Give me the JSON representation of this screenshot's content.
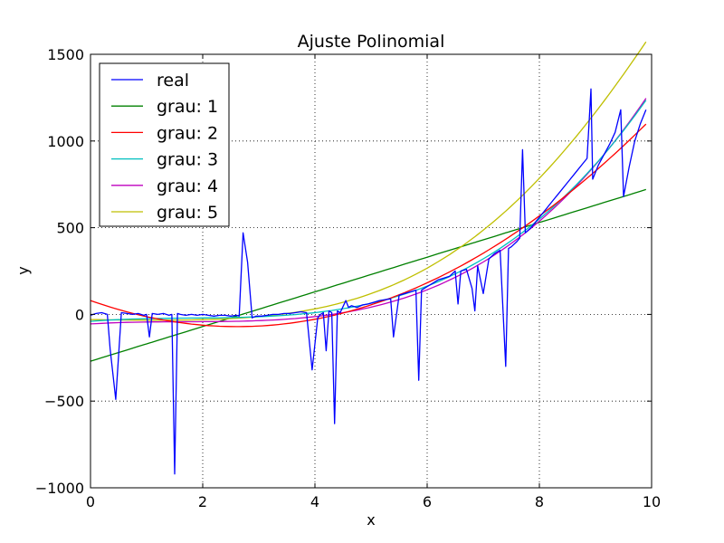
{
  "chart_data": {
    "type": "line",
    "title": "Ajuste Polinomial",
    "xlabel": "x",
    "ylabel": "y",
    "xlim": [
      0,
      10
    ],
    "ylim": [
      -1000,
      1500
    ],
    "xticks": [
      "0",
      "2",
      "4",
      "6",
      "8",
      "10"
    ],
    "yticks": [
      "−1000",
      "−500",
      "0",
      "500",
      "1000",
      "1500"
    ],
    "grid": true,
    "grid_style": "dotted",
    "legend_position": "top-left",
    "series": [
      {
        "name": "real",
        "color": "#0000ff",
        "x": [
          0.0,
          0.1,
          0.2,
          0.3,
          0.35,
          0.45,
          0.55,
          0.65,
          0.75,
          0.85,
          0.95,
          1.0,
          1.05,
          1.1,
          1.2,
          1.3,
          1.4,
          1.45,
          1.5,
          1.55,
          1.6,
          1.7,
          1.8,
          1.9,
          2.0,
          2.1,
          2.2,
          2.3,
          2.4,
          2.5,
          2.6,
          2.65,
          2.72,
          2.8,
          2.88,
          2.95,
          3.05,
          3.15,
          3.25,
          3.35,
          3.45,
          3.55,
          3.65,
          3.75,
          3.85,
          3.95,
          4.05,
          4.1,
          4.15,
          4.2,
          4.25,
          4.3,
          4.35,
          4.4,
          4.45,
          4.55,
          4.6,
          4.65,
          4.75,
          4.85,
          4.95,
          5.05,
          5.15,
          5.25,
          5.35,
          5.4,
          5.5,
          5.6,
          5.7,
          5.8,
          5.85,
          5.9,
          6.0,
          6.1,
          6.2,
          6.3,
          6.4,
          6.5,
          6.55,
          6.6,
          6.7,
          6.8,
          6.85,
          6.9,
          7.0,
          7.1,
          7.2,
          7.3,
          7.4,
          7.45,
          7.5,
          7.6,
          7.65,
          7.7,
          7.75,
          7.85,
          7.95,
          8.05,
          8.15,
          8.25,
          8.35,
          8.45,
          8.55,
          8.65,
          8.75,
          8.85,
          8.92,
          8.95,
          9.05,
          9.15,
          9.25,
          9.35,
          9.45,
          9.5,
          9.6,
          9.7,
          9.8,
          9.9
        ],
        "values": [
          -5,
          5,
          10,
          0,
          -200,
          -490,
          10,
          5,
          0,
          5,
          -5,
          0,
          -130,
          5,
          0,
          5,
          -5,
          0,
          -920,
          5,
          0,
          -5,
          0,
          -5,
          0,
          -5,
          -10,
          -5,
          -5,
          -10,
          -5,
          -10,
          470,
          300,
          -20,
          -10,
          -10,
          -5,
          0,
          0,
          5,
          5,
          10,
          15,
          10,
          -320,
          -20,
          0,
          10,
          -210,
          20,
          10,
          -630,
          20,
          10,
          80,
          40,
          50,
          40,
          55,
          60,
          70,
          80,
          85,
          90,
          -130,
          110,
          120,
          130,
          140,
          -380,
          140,
          160,
          180,
          200,
          210,
          220,
          250,
          60,
          250,
          260,
          150,
          20,
          280,
          120,
          320,
          350,
          370,
          -300,
          380,
          390,
          420,
          440,
          950,
          470,
          500,
          540,
          580,
          620,
          660,
          700,
          740,
          780,
          820,
          860,
          900,
          1300,
          780,
          860,
          920,
          980,
          1050,
          1180,
          680,
          850,
          1000,
          1100,
          1180
        ]
      },
      {
        "name": "grau: 1",
        "color": "#008000",
        "coefficients": [
          -270,
          100
        ]
      },
      {
        "name": "grau: 2",
        "color": "#ff0000",
        "coefficients": [
          80,
          -115,
          22
        ]
      },
      {
        "name": "grau: 3",
        "color": "#00bfbf",
        "coefficients": [
          -40,
          25.6,
          -12.54,
          2.32
        ]
      },
      {
        "name": "grau: 4",
        "color": "#bf00bf",
        "coefficients": [
          -55,
          20,
          -11,
          2.1,
          0.015
        ]
      },
      {
        "name": "grau: 5",
        "color": "#bfbf00",
        "coefficients": [
          -30,
          -5,
          2,
          -0.5,
          0.4,
          -0.02
        ]
      }
    ]
  }
}
